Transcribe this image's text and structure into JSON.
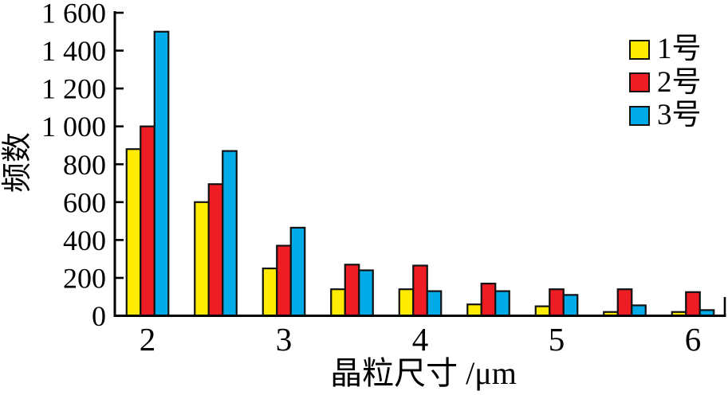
{
  "chart_data": {
    "type": "bar",
    "title": "",
    "xlabel": "晶粒尺寸 /μm",
    "ylabel": "频数",
    "x": [
      2,
      2.5,
      3,
      3.5,
      4,
      4.5,
      5,
      5.5,
      6
    ],
    "series": [
      {
        "name": "1号",
        "color": "#FFEC00",
        "values": [
          880,
          600,
          250,
          140,
          140,
          60,
          50,
          20,
          20
        ]
      },
      {
        "name": "2号",
        "color": "#EE1C23",
        "values": [
          1000,
          695,
          370,
          270,
          265,
          170,
          140,
          140,
          125
        ]
      },
      {
        "name": "3号",
        "color": "#00ABE8",
        "values": [
          1500,
          870,
          465,
          240,
          130,
          130,
          110,
          55,
          30
        ]
      }
    ],
    "ylim": [
      0,
      1600
    ],
    "yticks": [
      0,
      200,
      400,
      600,
      800,
      1000,
      1200,
      1400,
      1600
    ],
    "ytick_labels": [
      "0",
      "200",
      "400",
      "600",
      "800",
      "1 000",
      "1 200",
      "1 400",
      "1 600"
    ],
    "xticks": [
      2,
      3,
      4,
      5,
      6
    ],
    "xtick_labels": [
      "2",
      "3",
      "4",
      "5",
      "6"
    ],
    "grid": false,
    "legend_position": "top-right",
    "background_color": "#ffffff",
    "axis_color": "#000000",
    "bar_outline_color": "#121212"
  }
}
